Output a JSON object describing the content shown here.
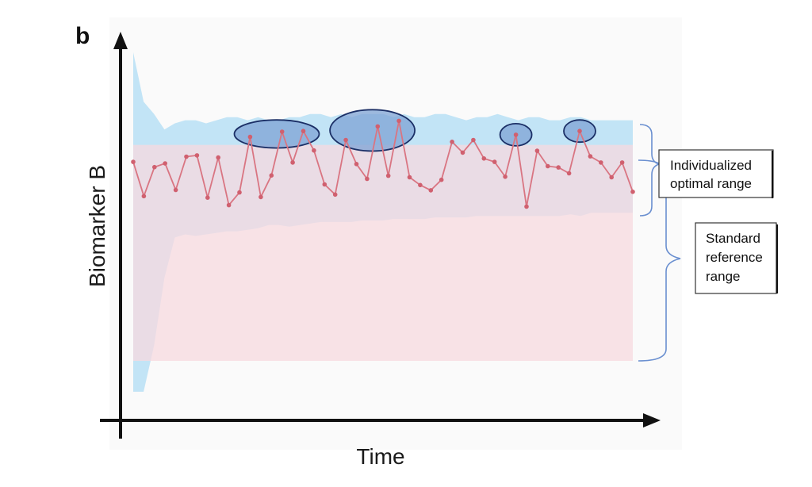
{
  "panel_label": "b",
  "annotations": {
    "individualized": [
      "Individualized",
      "optimal range"
    ],
    "standard": [
      "Standard",
      "reference",
      "range"
    ]
  },
  "colors": {
    "population_band": "#c2e4f6",
    "reference_band": "#f7d9df",
    "series_line": "#d97582",
    "series_point": "#d0606f",
    "highlight_fill": "#7ea3d4",
    "highlight_stroke": "#1b2f66",
    "bracket": "#6a8fd0",
    "axis": "#111111"
  },
  "chart_data": {
    "type": "line",
    "title": "",
    "xlabel": "Time",
    "ylabel": "Biomarker B",
    "ticks_shown": false,
    "xlim": [
      0,
      48
    ],
    "ylim": [
      0,
      100
    ],
    "grid": false,
    "legend": "none",
    "series": [
      {
        "values": [
          64.5,
          53.4,
          62.8,
          64.0,
          55.4,
          66.2,
          66.6,
          52.9,
          65.9,
          50.5,
          54.6,
          72.6,
          53.1,
          60.1,
          74.3,
          64.3,
          74.5,
          68.2,
          57.2,
          53.9,
          71.6,
          63.8,
          59.0,
          76.0,
          60.0,
          77.8,
          59.5,
          57.0,
          55.3,
          58.7,
          71.0,
          67.5,
          71.6,
          65.6,
          64.5,
          59.7,
          73.3,
          50.0,
          68.1,
          63.1,
          62.7,
          60.8,
          74.5,
          66.3,
          64.3,
          59.5,
          64.3,
          54.8
        ]
      }
    ],
    "bands": [
      {
        "role": "population variability envelope",
        "upper": [
          100.0,
          84.0,
          80.0,
          75.0,
          77.0,
          78.0,
          78.0,
          77.0,
          78.0,
          79.0,
          79.0,
          78.0,
          79.0,
          78.0,
          78.0,
          79.0,
          79.0,
          80.0,
          80.0,
          79.0,
          80.0,
          79.0,
          80.0,
          80.0,
          80.0,
          79.0,
          80.0,
          79.0,
          79.0,
          80.0,
          80.0,
          79.0,
          78.0,
          79.0,
          79.0,
          80.0,
          79.0,
          78.0,
          79.0,
          79.0,
          78.0,
          78.0,
          79.0,
          79.0,
          78.0,
          78.0,
          78.0,
          78.0,
          78.0
        ],
        "lower": [
          -10.0,
          -10.0,
          5.0,
          27.0,
          40.0,
          41.0,
          40.5,
          41.0,
          41.5,
          42.0,
          42.0,
          42.5,
          43.0,
          44.0,
          44.0,
          43.5,
          44.0,
          44.5,
          45.0,
          45.0,
          45.0,
          45.0,
          45.5,
          45.5,
          45.5,
          46.0,
          46.0,
          46.0,
          46.0,
          46.5,
          46.5,
          46.5,
          46.5,
          47.0,
          47.0,
          47.0,
          47.0,
          47.0,
          47.0,
          47.0,
          47.0,
          47.0,
          47.5,
          47.0,
          48.0,
          48.0,
          48.0,
          48.0,
          48.0
        ]
      },
      {
        "role": "standard reference range",
        "upper": 70,
        "lower": 0
      }
    ],
    "highlighted_points": [
      11,
      14,
      16,
      20,
      23,
      25,
      36,
      42
    ]
  }
}
